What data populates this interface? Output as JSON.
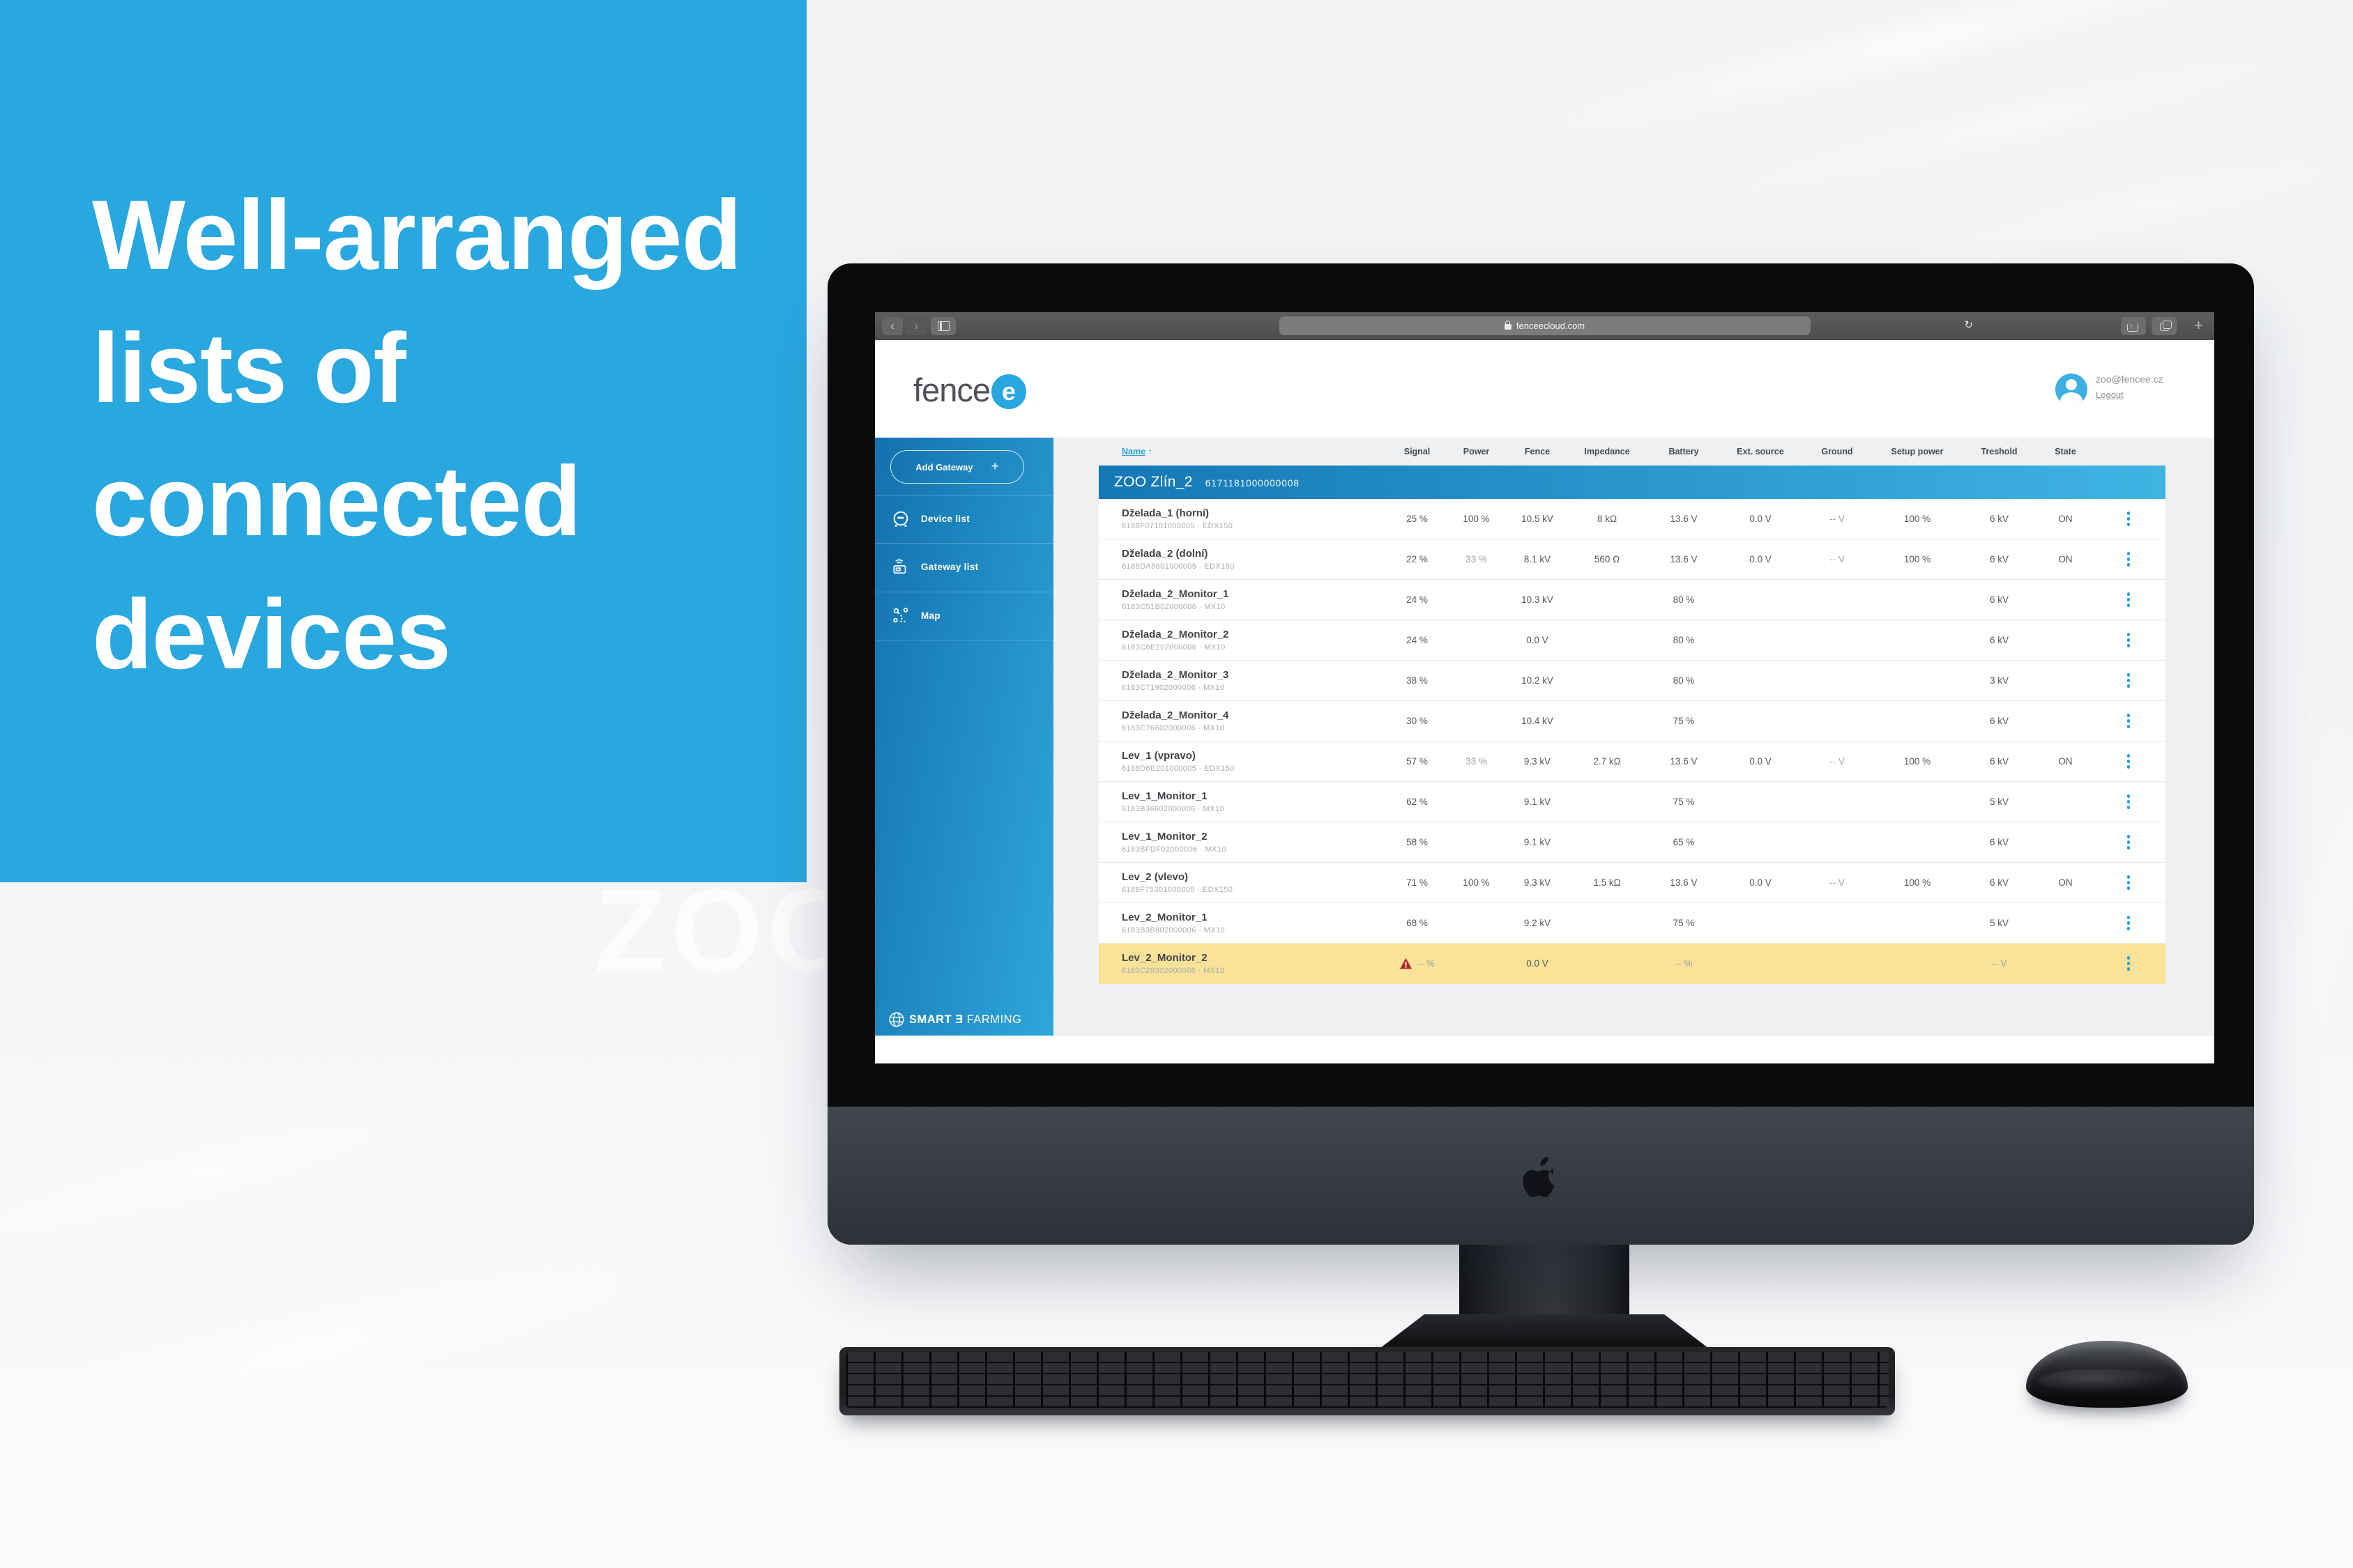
{
  "hero": {
    "lines": [
      "Well-arranged",
      "lists of",
      "connected",
      "devices"
    ]
  },
  "background": {
    "watermark": "ZOO"
  },
  "browser": {
    "url": "fenceecloud.com",
    "back_label": "‹",
    "forward_label": "›",
    "reload_label": "↻",
    "newtab_label": "+"
  },
  "brand": {
    "logo_word": "fence",
    "logo_e": "e"
  },
  "account": {
    "email": "zoo@fencee.cz",
    "logout_label": "Logout"
  },
  "sidebar": {
    "add_gateway_label": "Add Gateway",
    "add_gateway_plus": "+",
    "items": [
      {
        "label": "Device list",
        "icon": "device-icon"
      },
      {
        "label": "Gateway list",
        "icon": "gateway-icon"
      },
      {
        "label": "Map",
        "icon": "map-icon"
      }
    ],
    "footer": {
      "smart": "SMART",
      "plug": "Ǝ",
      "farming": "FARMING"
    }
  },
  "table": {
    "sort_label": "Name",
    "sort_arrow": "↑",
    "columns": [
      "Signal",
      "Power",
      "Fence",
      "Impedance",
      "Battery",
      "Ext. source",
      "Ground",
      "Setup power",
      "Treshold",
      "State"
    ],
    "gateway": {
      "name": "ZOO Zlín_2",
      "id": "6171181000000008"
    },
    "rows": [
      {
        "name": "Dželada_1 (horní)",
        "id": "6188F07101000005 · EDX150",
        "cells": [
          "25 %",
          "100 %",
          "10.5 kV",
          "8 kΩ",
          "13.6 V",
          "0.0 V",
          "-- V",
          "100 %",
          "6 kV",
          "ON"
        ],
        "muted": [],
        "warning": false,
        "highlight": false
      },
      {
        "name": "Dželada_2 (dolní)",
        "id": "6188DA8801000005 · EDX150",
        "cells": [
          "22 %",
          "33 %",
          "8.1 kV",
          "560 Ω",
          "13.6 V",
          "0.0 V",
          "-- V",
          "100 %",
          "6 kV",
          "ON"
        ],
        "muted": [
          1
        ],
        "warning": false,
        "highlight": false
      },
      {
        "name": "Dželada_2_Monitor_1",
        "id": "6183C51B02000006 · MX10",
        "cells": [
          "24 %",
          "",
          "10.3 kV",
          "",
          "80 %",
          "",
          "",
          "",
          "6 kV",
          ""
        ],
        "muted": [],
        "warning": false,
        "highlight": false
      },
      {
        "name": "Dželada_2_Monitor_2",
        "id": "6183C6E202000006 · MX10",
        "cells": [
          "24 %",
          "",
          "0.0 V",
          "",
          "80 %",
          "",
          "",
          "",
          "6 kV",
          ""
        ],
        "muted": [],
        "warning": false,
        "highlight": false
      },
      {
        "name": "Dželada_2_Monitor_3",
        "id": "6183C71902000006 · MX10",
        "cells": [
          "38 %",
          "",
          "10.2 kV",
          "",
          "80 %",
          "",
          "",
          "",
          "3 kV",
          ""
        ],
        "muted": [],
        "warning": false,
        "highlight": false
      },
      {
        "name": "Dželada_2_Monitor_4",
        "id": "6183C76602000006 · MX10",
        "cells": [
          "30 %",
          "",
          "10.4 kV",
          "",
          "75 %",
          "",
          "",
          "",
          "6 kV",
          ""
        ],
        "muted": [],
        "warning": false,
        "highlight": false
      },
      {
        "name": "Lev_1 (vpravo)",
        "id": "6188D6E201000005 · EDX150",
        "cells": [
          "57 %",
          "33 %",
          "9.3 kV",
          "2.7 kΩ",
          "13.6 V",
          "0.0 V",
          "-- V",
          "100 %",
          "6 kV",
          "ON"
        ],
        "muted": [
          1
        ],
        "warning": false,
        "highlight": false
      },
      {
        "name": "Lev_1_Monitor_1",
        "id": "6183B36602000006 · MX10",
        "cells": [
          "62 %",
          "",
          "9.1 kV",
          "",
          "75 %",
          "",
          "",
          "",
          "5 kV",
          ""
        ],
        "muted": [],
        "warning": false,
        "highlight": false
      },
      {
        "name": "Lev_1_Monitor_2",
        "id": "6183BFDF02000006 · MX10",
        "cells": [
          "58 %",
          "",
          "9.1 kV",
          "",
          "65 %",
          "",
          "",
          "",
          "6 kV",
          ""
        ],
        "muted": [],
        "warning": false,
        "highlight": false
      },
      {
        "name": "Lev_2 (vlevo)",
        "id": "6188F75301000005 · EDX150",
        "cells": [
          "71 %",
          "100 %",
          "9.3 kV",
          "1.5 kΩ",
          "13.6 V",
          "0.0 V",
          "-- V",
          "100 %",
          "6 kV",
          "ON"
        ],
        "muted": [],
        "warning": false,
        "highlight": false
      },
      {
        "name": "Lev_2_Monitor_1",
        "id": "6183B3B802000006 · MX10",
        "cells": [
          "68 %",
          "",
          "9.2 kV",
          "",
          "75 %",
          "",
          "",
          "",
          "5 kV",
          ""
        ],
        "muted": [],
        "warning": false,
        "highlight": false
      },
      {
        "name": "Lev_2_Monitor_2",
        "id": "6183C29302000006 · MX10",
        "cells": [
          "-- %",
          "",
          "0.0 V",
          "",
          "-- %",
          "",
          "",
          "",
          "-- V",
          ""
        ],
        "muted": [],
        "warning": true,
        "highlight": true
      }
    ]
  },
  "colors": {
    "accent": "#29a7df",
    "warning": "#b3282e",
    "highlight_row": "#fae298",
    "sidebar_from": "#1371ae",
    "sidebar_to": "#2ea6dc"
  }
}
